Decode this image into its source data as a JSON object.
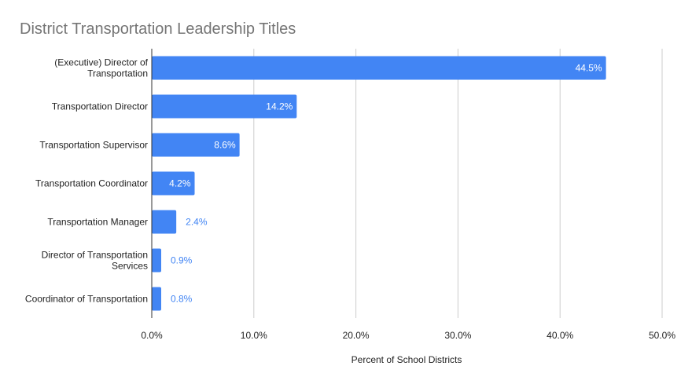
{
  "chart_data": {
    "type": "bar",
    "orientation": "horizontal",
    "title": "District Transportation Leadership Titles",
    "xlabel": "Percent of School Districts",
    "ylabel": "",
    "categories": [
      [
        "(Executive) Director of",
        "Transportation"
      ],
      [
        "Transportation Director"
      ],
      [
        "Transportation Supervisor"
      ],
      [
        "Transportation Coordinator"
      ],
      [
        "Transportation Manager"
      ],
      [
        "Director of Transportation",
        "Services"
      ],
      [
        "Coordinator of Transportation"
      ]
    ],
    "values": [
      44.5,
      14.2,
      8.6,
      4.2,
      2.4,
      0.9,
      0.8
    ],
    "data_labels": [
      "44.5%",
      "14.2%",
      "8.6%",
      "4.2%",
      "2.4%",
      "0.9%",
      "0.8%"
    ],
    "xlim": [
      0,
      50
    ],
    "xticks": [
      0,
      10,
      20,
      30,
      40,
      50
    ],
    "xtick_labels": [
      "0.0%",
      "10.0%",
      "20.0%",
      "30.0%",
      "40.0%",
      "50.0%"
    ],
    "grid": true,
    "legend": "none",
    "colors": {
      "bar": "#4285f4",
      "outside_label": "#4285f4",
      "inside_label": "#ffffff",
      "title": "#757575",
      "grid": "#cccccc"
    }
  }
}
